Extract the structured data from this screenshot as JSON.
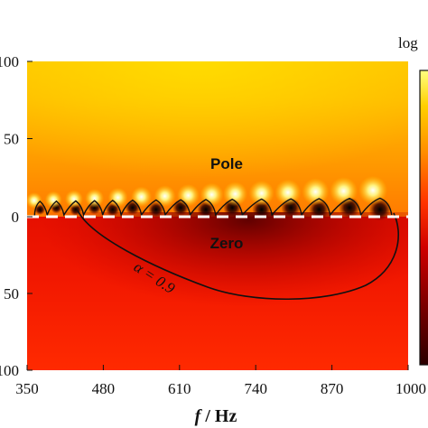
{
  "chart_data": {
    "type": "heatmap",
    "title": "",
    "xlabel_var": "f",
    "xlabel_unit": " / Hz",
    "xlim": [
      350,
      1000
    ],
    "x_ticks": [
      "350",
      "480",
      "610",
      "740",
      "870",
      "1000"
    ],
    "y_ticks": [
      "100",
      "50",
      "0",
      "50",
      "100"
    ],
    "y_ticks_note": "left edge of labels is cropped in the original image",
    "colorbar_label": "log",
    "colormap": [
      "#2a0000",
      "#7a0000",
      "#c80000",
      "#ff3300",
      "#ff8c00",
      "#ffd000",
      "#ffff80"
    ],
    "annotations": {
      "pole_label": "Pole",
      "zero_label": "Zero",
      "contour_label": "α = 0.9"
    },
    "poles_x": [
      362,
      395,
      430,
      465,
      505,
      545,
      585,
      625,
      665,
      705,
      750,
      795,
      842,
      890,
      940
    ],
    "zeros_x": [
      372,
      400,
      433,
      465,
      496,
      530,
      570,
      612,
      655,
      700,
      750,
      800,
      848,
      900,
      952
    ],
    "dashed_line_y": 0
  }
}
